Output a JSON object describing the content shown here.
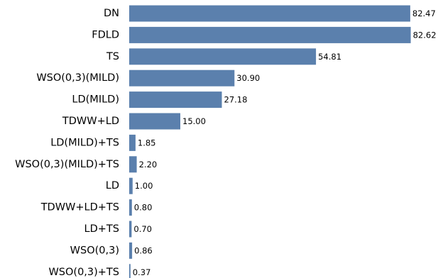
{
  "chart_data": {
    "type": "bar",
    "orientation": "horizontal",
    "categories": [
      "DN",
      "FDLD",
      "TS",
      "WSO(0,3)(MILD)",
      "LD(MILD)",
      "TDWW+LD",
      "LD(MILD)+TS",
      "WSO(0,3)(MILD)+TS",
      "LD",
      "TDWW+LD+TS",
      "LD+TS",
      "WSO(0,3)",
      "WSO(0,3)+TS"
    ],
    "values": [
      82.47,
      82.62,
      54.81,
      30.9,
      27.18,
      15.0,
      1.85,
      2.2,
      1.0,
      0.8,
      0.7,
      0.86,
      0.37
    ],
    "value_labels": [
      "82.47",
      "82.62",
      "54.81",
      "30.90",
      "27.18",
      "15.00",
      "1.85",
      "2.20",
      "1.00",
      "0.80",
      "0.70",
      "0.86",
      "0.37"
    ],
    "title": "",
    "xlabel": "",
    "ylabel": "",
    "grid": false,
    "bar_color": "#5b80ad"
  }
}
